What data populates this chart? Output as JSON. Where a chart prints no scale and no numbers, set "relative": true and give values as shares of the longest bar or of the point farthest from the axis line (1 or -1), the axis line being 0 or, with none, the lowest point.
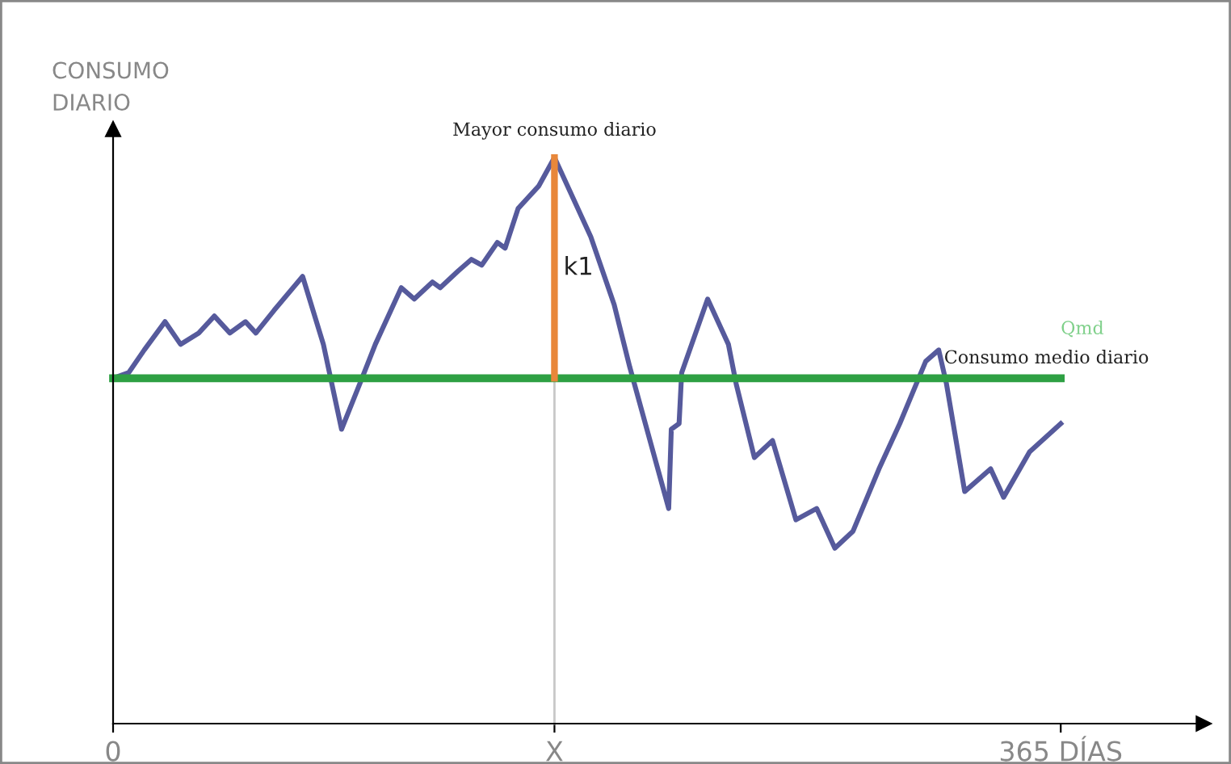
{
  "chart_data": {
    "type": "line",
    "relative": true,
    "xlabel": null,
    "ylabel": "CONSUMO\nDIARIO",
    "xlim": [
      0,
      420
    ],
    "xticks": [
      {
        "value": 0,
        "label": "0"
      },
      {
        "value": 170,
        "label": "X"
      },
      {
        "value": 365,
        "label": "365 DÍAS"
      }
    ],
    "tick_labels": "x",
    "grid": false,
    "legend": false,
    "marker": "none",
    "line_style": "solid",
    "series": [
      {
        "color": "#565a9c",
        "x": [
          0,
          6,
          12,
          20,
          26,
          33,
          39,
          45,
          51,
          55,
          62,
          73,
          81,
          88,
          95,
          101,
          111,
          116,
          123,
          126,
          133,
          138,
          142,
          148,
          151,
          156,
          164,
          170,
          184,
          193,
          199,
          214,
          215,
          218,
          219,
          229,
          237,
          240,
          247,
          254,
          263,
          271,
          278,
          285,
          295,
          303,
          313,
          318,
          321,
          328,
          338,
          343,
          353,
          365
        ],
        "values": [
          0.61,
          0.62,
          0.66,
          0.71,
          0.67,
          0.69,
          0.72,
          0.69,
          0.71,
          0.69,
          0.73,
          0.79,
          0.67,
          0.52,
          0.6,
          0.67,
          0.77,
          0.75,
          0.78,
          0.77,
          0.8,
          0.82,
          0.81,
          0.85,
          0.84,
          0.91,
          0.95,
          1.0,
          0.86,
          0.74,
          0.63,
          0.38,
          0.52,
          0.53,
          0.62,
          0.75,
          0.67,
          0.6,
          0.47,
          0.5,
          0.36,
          0.38,
          0.31,
          0.34,
          0.45,
          0.53,
          0.64,
          0.66,
          0.6,
          0.41,
          0.45,
          0.4,
          0.48,
          0.53
        ]
      },
      {
        "color": "#c8c8c8",
        "x": [
          170,
          170
        ],
        "values": [
          0,
          0.61
        ]
      },
      {
        "name": "Consumo medio diario",
        "color": "#2ea043",
        "x": [
          0,
          365
        ],
        "values": [
          0.61,
          0.61
        ]
      },
      {
        "name": "k1",
        "color": "#e8873a",
        "x": [
          170,
          170
        ],
        "values": [
          0.61,
          1.0
        ]
      }
    ],
    "annotations": [
      {
        "text": "Mayor consumo diario",
        "x": 170,
        "y": 1.0
      },
      {
        "text": "Qmd",
        "x": 365,
        "y": 0.61
      }
    ]
  }
}
